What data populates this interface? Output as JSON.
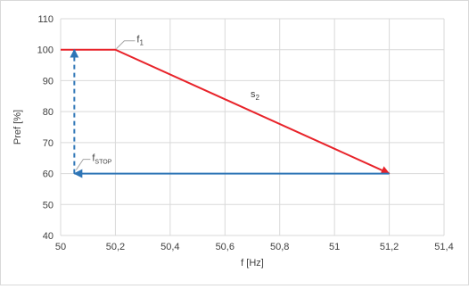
{
  "chart_data": {
    "type": "line",
    "xlabel": "f [Hz]",
    "ylabel": "Pref [%]",
    "xlim": [
      50,
      51.4
    ],
    "ylim": [
      40,
      110
    ],
    "x_ticks": [
      50,
      50.2,
      50.4,
      50.6,
      50.8,
      51,
      51.2,
      51.4
    ],
    "x_tick_labels": [
      "50",
      "50,2",
      "50,4",
      "50,6",
      "50,8",
      "51",
      "51,2",
      "51,4"
    ],
    "y_ticks": [
      40,
      50,
      60,
      70,
      80,
      90,
      100,
      110
    ],
    "y_tick_labels": [
      "40",
      "50",
      "60",
      "70",
      "80",
      "90",
      "100",
      "110"
    ],
    "grid": true,
    "series": [
      {
        "color": "#e8232a",
        "style": "solid",
        "x": [
          50,
          50.2,
          51.2
        ],
        "y": [
          100,
          100,
          60
        ]
      },
      {
        "color": "#2e75b6",
        "style": "solid-arrow",
        "x": [
          51.2,
          50.05
        ],
        "y": [
          60,
          60
        ]
      },
      {
        "color": "#2e75b6",
        "style": "dashed-arrow",
        "x": [
          50.05,
          50.05
        ],
        "y": [
          60,
          100
        ]
      }
    ],
    "annotations": [
      {
        "base": "f",
        "sub": "1",
        "x": 50.2,
        "y": 100
      },
      {
        "base": "s",
        "sub": "2",
        "x": 50.7,
        "y": 80
      },
      {
        "base": "f",
        "sub": "STOP",
        "x": 50.05,
        "y": 60
      }
    ]
  }
}
